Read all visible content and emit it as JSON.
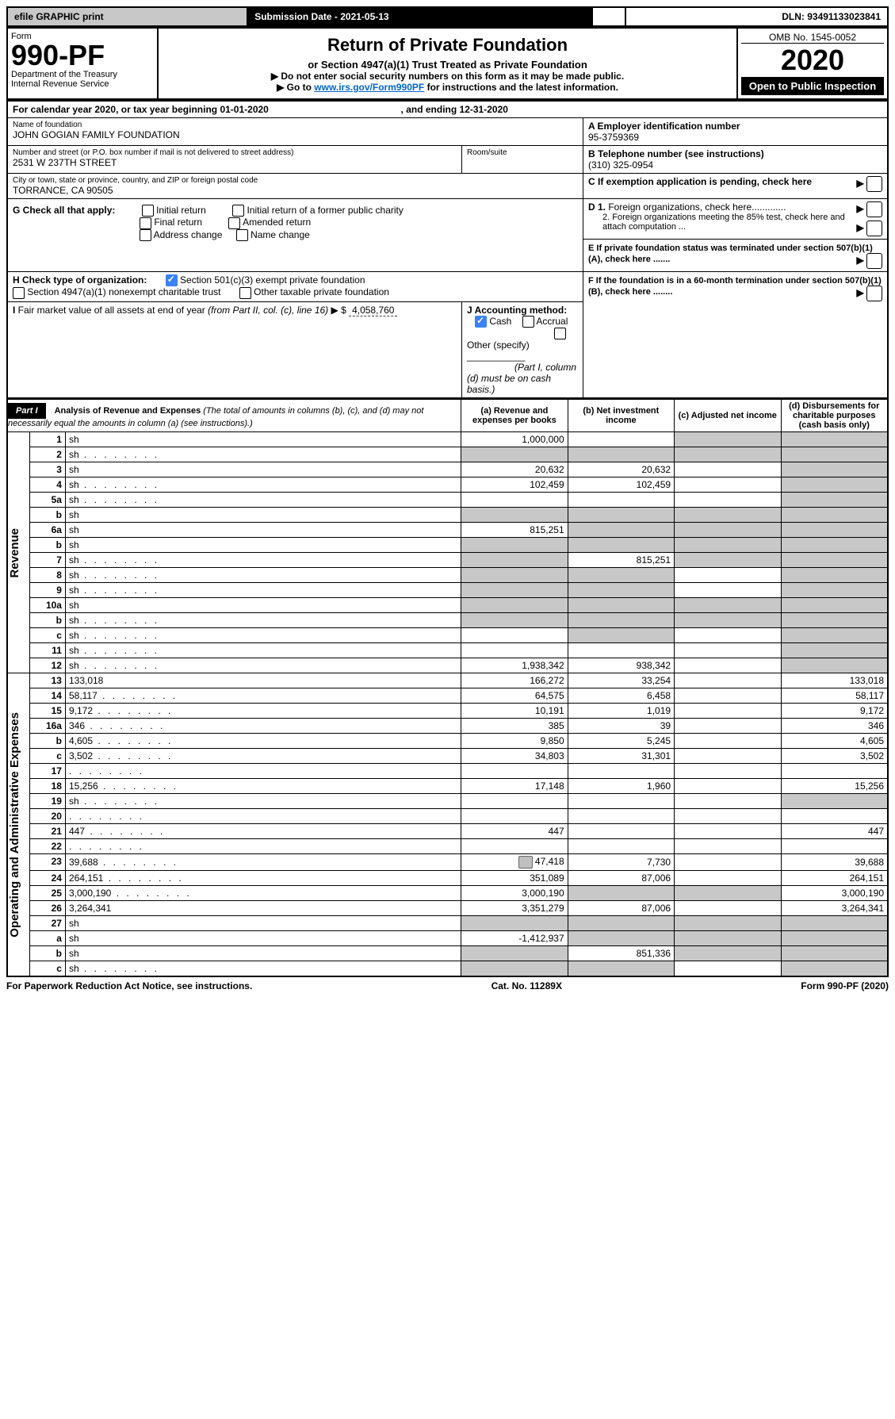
{
  "top": {
    "efile": "efile GRAPHIC print",
    "subdate_label": "Submission Date - ",
    "subdate": "2021-05-13",
    "dln_label": "DLN: ",
    "dln": "93491133023841"
  },
  "header": {
    "form_label": "Form",
    "form_num": "990-PF",
    "dept": "Department of the Treasury\nInternal Revenue Service",
    "title": "Return of Private Foundation",
    "subtitle": "or Section 4947(a)(1) Trust Treated as Private Foundation",
    "instr1": "▶ Do not enter social security numbers on this form as it may be made public.",
    "instr2_pre": "▶ Go to ",
    "instr2_link": "www.irs.gov/Form990PF",
    "instr2_post": " for instructions and the latest information.",
    "omb": "OMB No. 1545-0052",
    "year": "2020",
    "openpub": "Open to Public Inspection"
  },
  "cal": {
    "text1": "For calendar year 2020, or tax year beginning ",
    "begin": "01-01-2020",
    "text2": " , and ending ",
    "end": "12-31-2020"
  },
  "id": {
    "name_label": "Name of foundation",
    "name": "JOHN GOGIAN FAMILY FOUNDATION",
    "addr_label": "Number and street (or P.O. box number if mail is not delivered to street address)",
    "addr": "2531 W 237TH STREET",
    "room_label": "Room/suite",
    "city_label": "City or town, state or province, country, and ZIP or foreign postal code",
    "city": "TORRANCE, CA  90505",
    "a_label": "A Employer identification number",
    "a": "95-3759369",
    "b_label": "B Telephone number (see instructions)",
    "b": "(310) 325-0954",
    "c_label": "C If exemption application is pending, check here",
    "d1": "D 1. Foreign organizations, check here.............",
    "d2": "2. Foreign organizations meeting the 85% test, check here and attach computation ...",
    "e": "E  If private foundation status was terminated under section 507(b)(1)(A), check here .......",
    "f": "F  If the foundation is in a 60-month termination under section 507(b)(1)(B), check here ........"
  },
  "g": {
    "label": "G Check all that apply:",
    "opts": [
      "Initial return",
      "Initial return of a former public charity",
      "Final return",
      "Amended return",
      "Address change",
      "Name change"
    ]
  },
  "h": {
    "label": "H Check type of organization:",
    "opt1": "Section 501(c)(3) exempt private foundation",
    "opt2": "Section 4947(a)(1) nonexempt charitable trust",
    "opt3": "Other taxable private foundation"
  },
  "i": {
    "label": "I Fair market value of all assets at end of year (from Part II, col. (c), line 16) ▶ $",
    "val": "4,058,760"
  },
  "j": {
    "label": "J Accounting method:",
    "cash": "Cash",
    "accrual": "Accrual",
    "other": "Other (specify)",
    "note": "(Part I, column (d) must be on cash basis.)"
  },
  "part1": {
    "hdr": "Part I",
    "title": "Analysis of Revenue and Expenses",
    "title_sub": " (The total of amounts in columns (b), (c), and (d) may not necessarily equal the amounts in column (a) (see instructions).)",
    "col_a": "(a)  Revenue and expenses per books",
    "col_b": "(b)  Net investment income",
    "col_c": "(c)  Adjusted net income",
    "col_d": "(d)  Disbursements for charitable purposes (cash basis only)"
  },
  "vlabels": {
    "rev": "Revenue",
    "exp": "Operating and Administrative Expenses"
  },
  "rows": [
    {
      "n": "1",
      "d": "sh",
      "a": "1,000,000",
      "b": "",
      "c": "sh"
    },
    {
      "n": "2",
      "d": "sh",
      "dots": true,
      "a": "sh",
      "b": "sh",
      "c": "sh"
    },
    {
      "n": "3",
      "d": "sh",
      "a": "20,632",
      "b": "20,632",
      "c": ""
    },
    {
      "n": "4",
      "d": "sh",
      "dots": true,
      "a": "102,459",
      "b": "102,459",
      "c": ""
    },
    {
      "n": "5a",
      "d": "sh",
      "dots": true,
      "a": "",
      "b": "",
      "c": ""
    },
    {
      "n": "b",
      "d": "sh",
      "a": "sh",
      "b": "sh",
      "c": "sh"
    },
    {
      "n": "6a",
      "d": "sh",
      "a": "815,251",
      "b": "sh",
      "c": "sh"
    },
    {
      "n": "b",
      "d": "sh",
      "a": "sh",
      "b": "sh",
      "c": "sh"
    },
    {
      "n": "7",
      "d": "sh",
      "dots": true,
      "a": "sh",
      "b": "815,251",
      "c": "sh"
    },
    {
      "n": "8",
      "d": "sh",
      "dots": true,
      "a": "sh",
      "b": "sh",
      "c": ""
    },
    {
      "n": "9",
      "d": "sh",
      "dots": true,
      "a": "sh",
      "b": "sh",
      "c": ""
    },
    {
      "n": "10a",
      "d": "sh",
      "a": "sh",
      "b": "sh",
      "c": "sh"
    },
    {
      "n": "b",
      "d": "sh",
      "dots": true,
      "a": "sh",
      "b": "sh",
      "c": "sh"
    },
    {
      "n": "c",
      "d": "sh",
      "dots": true,
      "a": "",
      "b": "sh",
      "c": ""
    },
    {
      "n": "11",
      "d": "sh",
      "dots": true,
      "a": "",
      "b": "",
      "c": ""
    },
    {
      "n": "12",
      "d": "sh",
      "dots": true,
      "a": "1,938,342",
      "b": "938,342",
      "c": ""
    },
    {
      "n": "13",
      "d": "133,018",
      "a": "166,272",
      "b": "33,254",
      "c": ""
    },
    {
      "n": "14",
      "d": "58,117",
      "dots": true,
      "a": "64,575",
      "b": "6,458",
      "c": ""
    },
    {
      "n": "15",
      "d": "9,172",
      "dots": true,
      "a": "10,191",
      "b": "1,019",
      "c": ""
    },
    {
      "n": "16a",
      "d": "346",
      "dots": true,
      "a": "385",
      "b": "39",
      "c": ""
    },
    {
      "n": "b",
      "d": "4,605",
      "dots": true,
      "a": "9,850",
      "b": "5,245",
      "c": ""
    },
    {
      "n": "c",
      "d": "3,502",
      "dots": true,
      "a": "34,803",
      "b": "31,301",
      "c": ""
    },
    {
      "n": "17",
      "d": "",
      "dots": true,
      "a": "",
      "b": "",
      "c": ""
    },
    {
      "n": "18",
      "d": "15,256",
      "dots": true,
      "a": "17,148",
      "b": "1,960",
      "c": ""
    },
    {
      "n": "19",
      "d": "sh",
      "dots": true,
      "a": "",
      "b": "",
      "c": ""
    },
    {
      "n": "20",
      "d": "",
      "dots": true,
      "a": "",
      "b": "",
      "c": ""
    },
    {
      "n": "21",
      "d": "447",
      "dots": true,
      "a": "447",
      "b": "",
      "c": ""
    },
    {
      "n": "22",
      "d": "",
      "dots": true,
      "a": "",
      "b": "",
      "c": ""
    },
    {
      "n": "23",
      "d": "39,688",
      "dots": true,
      "a_icon": true,
      "a": "47,418",
      "b": "7,730",
      "c": ""
    },
    {
      "n": "24",
      "d": "264,151",
      "dots": true,
      "a": "351,089",
      "b": "87,006",
      "c": ""
    },
    {
      "n": "25",
      "d": "3,000,190",
      "dots": true,
      "a": "3,000,190",
      "b": "sh",
      "c": "sh"
    },
    {
      "n": "26",
      "d": "3,264,341",
      "a": "3,351,279",
      "b": "87,006",
      "c": ""
    },
    {
      "n": "27",
      "d": "sh",
      "a": "sh",
      "b": "sh",
      "c": "sh"
    },
    {
      "n": "a",
      "d": "sh",
      "a": "-1,412,937",
      "b": "sh",
      "c": "sh"
    },
    {
      "n": "b",
      "d": "sh",
      "a": "sh",
      "b": "851,336",
      "c": "sh"
    },
    {
      "n": "c",
      "d": "sh",
      "dots": true,
      "a": "sh",
      "b": "sh",
      "c": ""
    }
  ],
  "footer": {
    "left": "For Paperwork Reduction Act Notice, see instructions.",
    "mid": "Cat. No. 11289X",
    "right": "Form 990-PF (2020)"
  }
}
